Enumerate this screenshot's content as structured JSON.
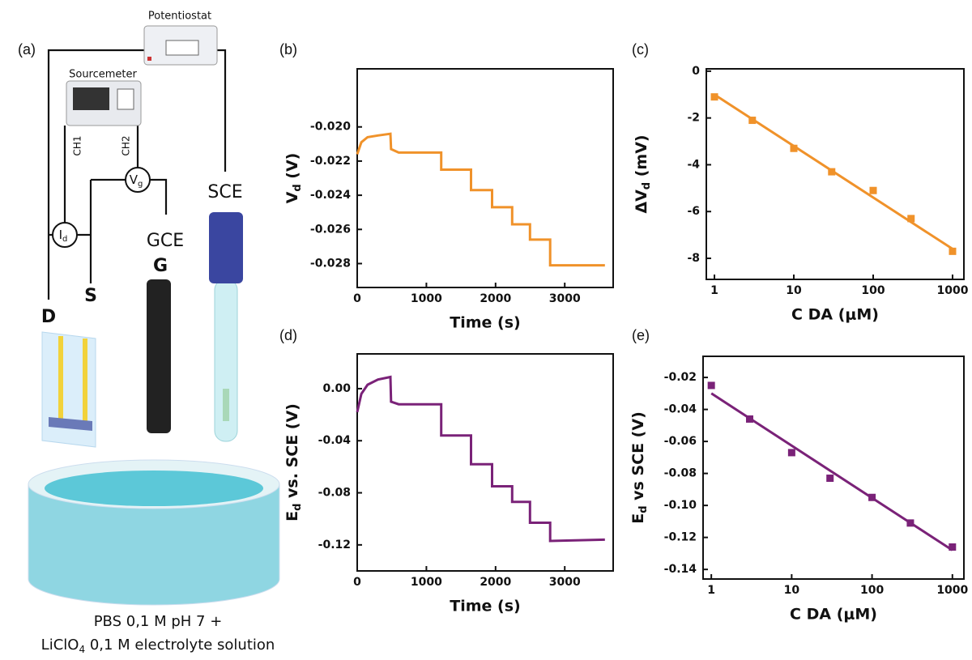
{
  "diagram": {
    "panel": "(a)",
    "potentiostat": "Potentiostat",
    "sourcemeter": "Sourcemeter",
    "ch1": "CH1",
    "ch2": "CH2",
    "id": [
      "I",
      "d"
    ],
    "vg": [
      "V",
      "g"
    ],
    "sce": "SCE",
    "gce": "GCE",
    "g": "G",
    "s": "S",
    "d": "D",
    "caption": [
      [
        "PBS 0,1 M pH 7 +"
      ],
      [
        "LiClO",
        "4",
        " 0,1 M electrolyte solution"
      ]
    ]
  },
  "chart_data": [
    {
      "type": "line",
      "panel": "(b)",
      "x_label": "Time (s)",
      "y_label": [
        "V",
        "d",
        " (V)"
      ],
      "xlim": [
        0,
        3700
      ],
      "xticks": [
        0,
        1000,
        2000,
        3000
      ],
      "ylim": [
        -0.0294,
        -0.0166
      ],
      "yticks": [
        {
          "value": -0.02,
          "label": "-0.020"
        },
        {
          "value": -0.022,
          "label": "-0.022"
        },
        {
          "value": -0.024,
          "label": "-0.024"
        },
        {
          "value": -0.026,
          "label": "-0.026"
        },
        {
          "value": -0.028,
          "label": "-0.028"
        }
      ],
      "series": [
        {
          "type": "line",
          "color": "#f0922a",
          "x": [
            0,
            60,
            150,
            300,
            480,
            489,
            600,
            1214,
            1214,
            1645,
            1645,
            1949,
            1949,
            2240,
            2240,
            2497,
            2497,
            2789,
            2789,
            3580
          ],
          "values": [
            -0.0216,
            -0.0209,
            -0.0206,
            -0.0205,
            -0.0204,
            -0.0213,
            -0.0215,
            -0.0215,
            -0.0225,
            -0.0225,
            -0.0237,
            -0.0237,
            -0.0247,
            -0.0247,
            -0.0257,
            -0.0257,
            -0.0266,
            -0.0266,
            -0.0281,
            -0.0281
          ]
        }
      ]
    },
    {
      "type": "scatter",
      "panel": "(c)",
      "x_label": "C DA (μM)",
      "y_label": [
        "ΔV",
        "d",
        " (mV)"
      ],
      "log_x": true,
      "xlim": [
        0.79,
        1390
      ],
      "xticks": [
        1,
        10,
        100,
        1000
      ],
      "ylim": [
        -8.9,
        0.1
      ],
      "yticks": [
        0,
        -2,
        -4,
        -6,
        -8
      ],
      "series": [
        {
          "type": "scatter",
          "color": "#f0922a",
          "x": [
            1,
            3,
            10,
            30,
            100,
            300,
            1000
          ],
          "values": [
            -1.1,
            -2.1,
            -3.3,
            -4.3,
            -5.1,
            -6.3,
            -7.7
          ]
        },
        {
          "type": "line",
          "color": "#f0922a",
          "x": [
            1,
            1000
          ],
          "values": [
            -1.0,
            -7.6
          ]
        }
      ]
    },
    {
      "type": "line",
      "panel": "(d)",
      "x_label": "Time (s)",
      "y_label": [
        "E",
        "d",
        " vs. SCE (V)"
      ],
      "xlim": [
        0,
        3700
      ],
      "xticks": [
        0,
        1000,
        2000,
        3000
      ],
      "ylim": [
        -0.14,
        0.0267
      ],
      "yticks": [
        {
          "value": 0,
          "label": "0.00"
        },
        -0.04,
        -0.08,
        -0.12
      ],
      "series": [
        {
          "type": "line",
          "color": "#7a2278",
          "x": [
            0,
            60,
            150,
            300,
            480,
            489,
            600,
            1214,
            1214,
            1645,
            1645,
            1949,
            1949,
            2240,
            2240,
            2497,
            2497,
            2789,
            2789,
            3580
          ],
          "values": [
            -0.018,
            -0.004,
            0.003,
            0.007,
            0.009,
            -0.01,
            -0.012,
            -0.012,
            -0.036,
            -0.036,
            -0.058,
            -0.058,
            -0.075,
            -0.075,
            -0.087,
            -0.087,
            -0.103,
            -0.103,
            -0.117,
            -0.116
          ]
        }
      ]
    },
    {
      "type": "scatter",
      "panel": "(e)",
      "x_label": "C DA (μM)",
      "y_label": [
        "E",
        "d",
        " vs SCE (V)"
      ],
      "log_x": true,
      "xlim": [
        0.79,
        1390
      ],
      "xticks": [
        1,
        10,
        100,
        1000
      ],
      "ylim": [
        -0.146,
        -0.0068
      ],
      "yticks": [
        -0.02,
        -0.04,
        -0.06,
        -0.08,
        {
          "value": -0.1,
          "label": "-0.10"
        },
        -0.12,
        -0.14
      ],
      "series": [
        {
          "type": "scatter",
          "color": "#7a2278",
          "x": [
            1,
            3,
            10,
            30,
            100,
            300,
            1000
          ],
          "values": [
            -0.025,
            -0.046,
            -0.067,
            -0.083,
            -0.095,
            -0.111,
            -0.126
          ]
        },
        {
          "type": "line",
          "color": "#7a2278",
          "x": [
            1,
            1000
          ],
          "values": [
            -0.03,
            -0.128
          ]
        }
      ]
    }
  ]
}
